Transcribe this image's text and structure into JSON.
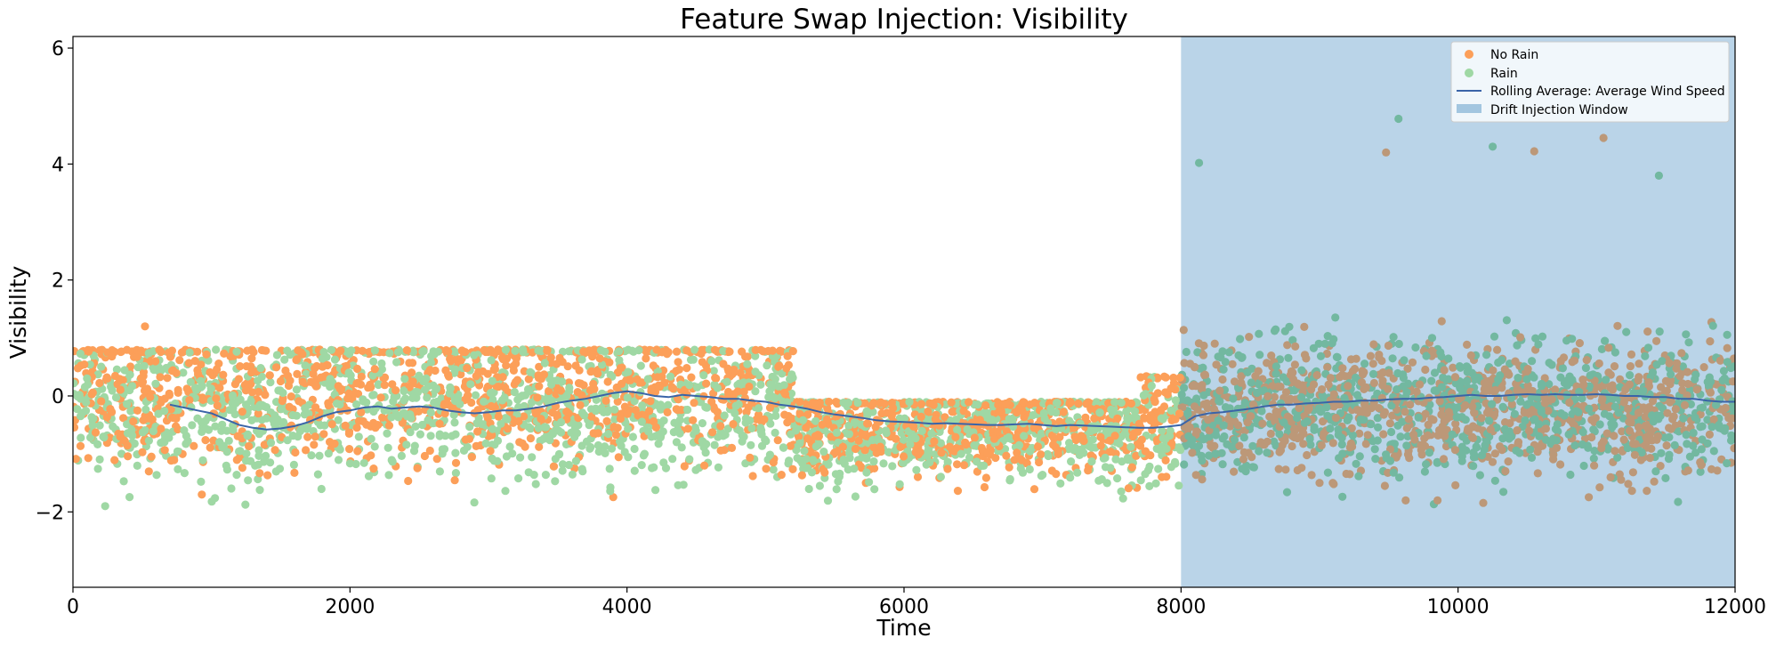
{
  "chart_data": {
    "type": "scatter",
    "title": "Feature Swap Injection: Visibility",
    "xlabel": "Time",
    "ylabel": "Visibility",
    "xlim": [
      0,
      12000
    ],
    "ylim": [
      -3.3,
      6.2
    ],
    "xticks": [
      0,
      2000,
      4000,
      6000,
      8000,
      10000,
      12000
    ],
    "yticks": [
      -2,
      0,
      2,
      4,
      6
    ],
    "grid": false,
    "legend_position": "top-right",
    "series": [
      {
        "name": "No Rain",
        "kind": "scatter",
        "color": "#fc9f59",
        "drift_color": "#bc9878"
      },
      {
        "name": "Rain",
        "kind": "scatter",
        "color": "#9fd8a4",
        "drift_color": "#72b8a0"
      },
      {
        "name": "Rolling Average: Average Wind Speed",
        "kind": "line",
        "color": "#3a64a8",
        "x": [
          700,
          800,
          900,
          1000,
          1100,
          1200,
          1300,
          1400,
          1500,
          1600,
          1700,
          1800,
          1900,
          2000,
          2100,
          2200,
          2300,
          2400,
          2500,
          2600,
          2700,
          2800,
          2900,
          3000,
          3100,
          3200,
          3300,
          3400,
          3500,
          3600,
          3700,
          3800,
          3900,
          4000,
          4100,
          4200,
          4300,
          4400,
          4500,
          4600,
          4700,
          4800,
          4900,
          5000,
          5100,
          5200,
          5300,
          5400,
          5500,
          5600,
          5700,
          5800,
          5900,
          6000,
          6100,
          6200,
          6300,
          6400,
          6500,
          6600,
          6700,
          6800,
          6900,
          7000,
          7100,
          7200,
          7300,
          7400,
          7500,
          7600,
          7700,
          7800,
          7900,
          8000,
          8100,
          8200,
          8300,
          8400,
          8500,
          8600,
          8700,
          8800,
          8900,
          9000,
          9100,
          9200,
          9300,
          9400,
          9500,
          9600,
          9700,
          9800,
          9900,
          10000,
          10100,
          10200,
          10300,
          10400,
          10500,
          10600,
          10700,
          10800,
          10900,
          11000,
          11100,
          11200,
          11300,
          11400,
          11500,
          11600,
          11700,
          11800,
          11900,
          12000
        ],
        "y": [
          -0.15,
          -0.2,
          -0.25,
          -0.3,
          -0.4,
          -0.5,
          -0.55,
          -0.58,
          -0.56,
          -0.52,
          -0.45,
          -0.35,
          -0.28,
          -0.25,
          -0.2,
          -0.18,
          -0.22,
          -0.2,
          -0.18,
          -0.2,
          -0.25,
          -0.28,
          -0.3,
          -0.28,
          -0.25,
          -0.25,
          -0.22,
          -0.18,
          -0.12,
          -0.08,
          -0.05,
          0.0,
          0.05,
          0.08,
          0.05,
          0.0,
          -0.02,
          0.02,
          0.0,
          -0.02,
          -0.05,
          -0.05,
          -0.08,
          -0.1,
          -0.15,
          -0.18,
          -0.22,
          -0.28,
          -0.32,
          -0.35,
          -0.38,
          -0.42,
          -0.44,
          -0.45,
          -0.46,
          -0.48,
          -0.47,
          -0.48,
          -0.49,
          -0.5,
          -0.5,
          -0.49,
          -0.48,
          -0.5,
          -0.52,
          -0.5,
          -0.51,
          -0.52,
          -0.53,
          -0.54,
          -0.55,
          -0.55,
          -0.53,
          -0.5,
          -0.35,
          -0.3,
          -0.28,
          -0.25,
          -0.22,
          -0.18,
          -0.15,
          -0.15,
          -0.13,
          -0.12,
          -0.1,
          -0.1,
          -0.08,
          -0.08,
          -0.06,
          -0.05,
          -0.05,
          -0.03,
          -0.02,
          0.0,
          0.02,
          0.0,
          0.0,
          0.02,
          0.03,
          0.02,
          0.03,
          0.02,
          0.02,
          0.03,
          0.02,
          0.0,
          0.0,
          -0.02,
          -0.02,
          -0.05,
          -0.05,
          -0.08,
          -0.1,
          -0.1
        ]
      }
    ],
    "shaded_region": {
      "name": "Drift Injection Window",
      "x_start": 8000,
      "x_end": 12000,
      "color": "#a3c6e0"
    },
    "scatter_regimes": [
      {
        "x": [
          0,
          5200
        ],
        "upper_clip": 0.8,
        "center": -0.2,
        "spread": 1.0,
        "no_rain_bias": 0.3
      },
      {
        "x": [
          5200,
          7700
        ],
        "upper_clip": -0.1,
        "center": -0.6,
        "spread": 0.7,
        "no_rain_bias": 0.1
      },
      {
        "x": [
          7700,
          8000
        ],
        "upper_clip": 0.35,
        "center": -0.5,
        "spread": 0.8,
        "no_rain_bias": 0.1
      },
      {
        "x": [
          8000,
          12000
        ],
        "upper_clip": 4.8,
        "center": -0.2,
        "spread": 0.9,
        "no_rain_bias": 0.0
      }
    ],
    "outliers": [
      {
        "series": "No Rain",
        "x": 520,
        "y": 1.2
      },
      {
        "series": "No Rain",
        "x": 11050,
        "y": 4.45
      },
      {
        "series": "No Rain",
        "x": 9480,
        "y": 4.2
      },
      {
        "series": "Rain",
        "x": 9570,
        "y": 4.78
      },
      {
        "series": "Rain",
        "x": 10250,
        "y": 4.3
      },
      {
        "series": "No Rain",
        "x": 10550,
        "y": 4.22
      },
      {
        "series": "Rain",
        "x": 11450,
        "y": 3.8
      },
      {
        "series": "Rain",
        "x": 8130,
        "y": 4.02
      }
    ]
  }
}
